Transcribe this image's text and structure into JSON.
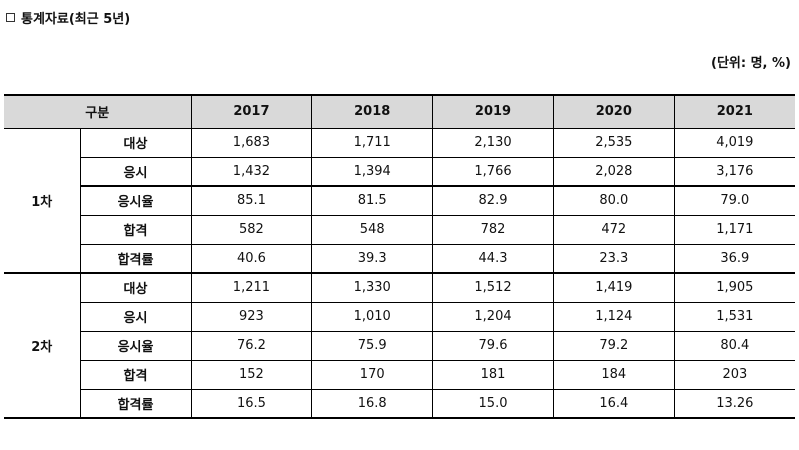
{
  "heading": "통계자료(최근 5년)",
  "unit_note": "(단위: 명, %)",
  "table": {
    "corner_label": "구분",
    "years": [
      "2017",
      "2018",
      "2019",
      "2020",
      "2021"
    ],
    "groups": [
      {
        "label": "1차",
        "rows": [
          {
            "item": "대상",
            "values": [
              "1,683",
              "1,711",
              "2,130",
              "2,535",
              "4,019"
            ]
          },
          {
            "item": "응시",
            "values": [
              "1,432",
              "1,394",
              "1,766",
              "2,028",
              "3,176"
            ]
          },
          {
            "item": "응시율",
            "values": [
              "85.1",
              "81.5",
              "82.9",
              "80.0",
              "79.0"
            ]
          },
          {
            "item": "합격",
            "values": [
              "582",
              "548",
              "782",
              "472",
              "1,171"
            ]
          },
          {
            "item": "합격률",
            "values": [
              "40.6",
              "39.3",
              "44.3",
              "23.3",
              "36.9"
            ]
          }
        ]
      },
      {
        "label": "2차",
        "rows": [
          {
            "item": "대상",
            "values": [
              "1,211",
              "1,330",
              "1,512",
              "1,419",
              "1,905"
            ]
          },
          {
            "item": "응시",
            "values": [
              "923",
              "1,010",
              "1,204",
              "1,124",
              "1,531"
            ]
          },
          {
            "item": "응시율",
            "values": [
              "76.2",
              "75.9",
              "79.6",
              "79.2",
              "80.4"
            ]
          },
          {
            "item": "합격",
            "values": [
              "152",
              "170",
              "181",
              "184",
              "203"
            ]
          },
          {
            "item": "합격률",
            "values": [
              "16.5",
              "16.8",
              "15.0",
              "16.4",
              "13.26"
            ]
          }
        ]
      }
    ]
  }
}
